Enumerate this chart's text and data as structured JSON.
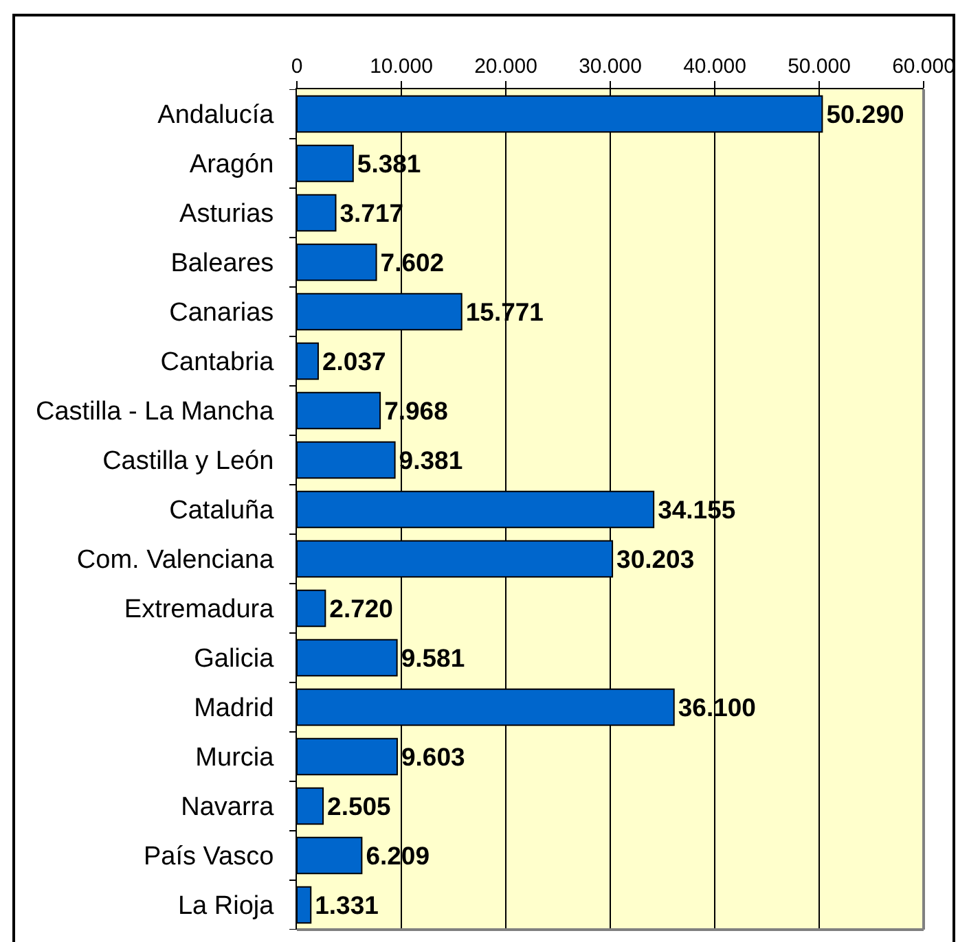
{
  "chart_data": {
    "type": "bar",
    "orientation": "horizontal",
    "categories": [
      "Andalucía",
      "Aragón",
      "Asturias",
      "Baleares",
      "Canarias",
      "Cantabria",
      "Castilla - La Mancha",
      "Castilla y León",
      "Cataluña",
      "Com. Valenciana",
      "Extremadura",
      "Galicia",
      "Madrid",
      "Murcia",
      "Navarra",
      "País Vasco",
      "La Rioja"
    ],
    "values": [
      50290,
      5381,
      3717,
      7602,
      15771,
      2037,
      7968,
      9381,
      34155,
      30203,
      2720,
      9581,
      36100,
      9603,
      2505,
      6209,
      1331
    ],
    "value_labels": [
      "50.290",
      "5.381",
      "3.717",
      "7.602",
      "15.771",
      "2.037",
      "7.968",
      "9.381",
      "34.155",
      "30.203",
      "2.720",
      "9.581",
      "36.100",
      "9.603",
      "2.505",
      "6.209",
      "1.331"
    ],
    "color": "#0066cc",
    "xlim": [
      0,
      60000
    ],
    "xticks": [
      0,
      {
        "value": 10000,
        "label": "10.000"
      },
      {
        "value": 20000,
        "label": "20.000"
      },
      {
        "value": 30000,
        "label": "30.000"
      },
      {
        "value": 40000,
        "label": "40.000"
      },
      {
        "value": 50000,
        "label": "50.000"
      },
      {
        "value": 60000,
        "label": "60.000"
      }
    ],
    "grid": "x"
  }
}
